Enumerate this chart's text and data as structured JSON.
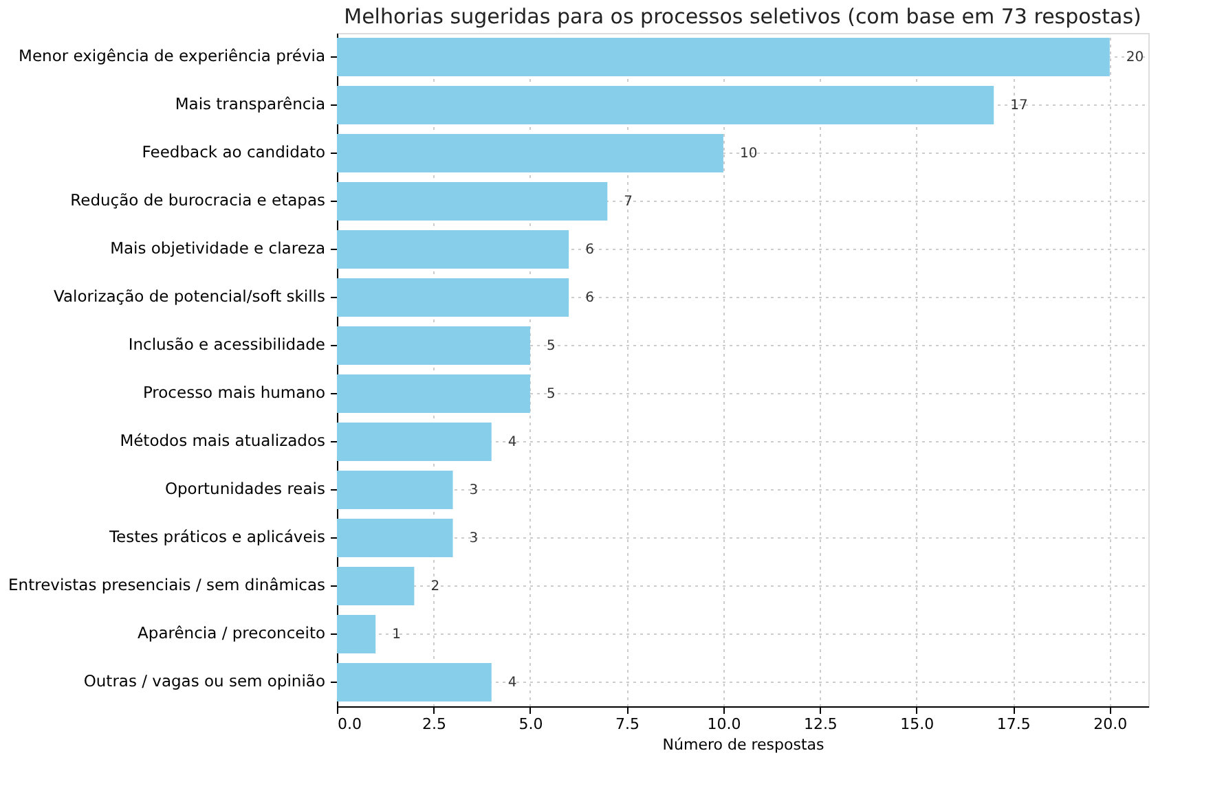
{
  "chart_data": {
    "type": "bar",
    "orientation": "horizontal",
    "title": "Melhorias sugeridas para os processos seletivos (com base em 73 respostas)",
    "xlabel": "Número de respostas",
    "categories": [
      "Menor exigência de experiência prévia",
      "Mais transparência",
      "Feedback ao candidato",
      "Redução de burocracia e etapas",
      "Mais objetividade e clareza",
      "Valorização de potencial/soft skills",
      "Inclusão e acessibilidade",
      "Processo mais humano",
      "Métodos mais atualizados",
      "Oportunidades reais",
      "Testes práticos e aplicáveis",
      "Entrevistas presenciais / sem dinâmicas",
      "Aparência / preconceito",
      "Outras / vagas ou sem opinião"
    ],
    "values": [
      20,
      17,
      10,
      7,
      6,
      6,
      5,
      5,
      4,
      3,
      3,
      2,
      1,
      4
    ],
    "color": "#87ceeb",
    "xlim": [
      0,
      21
    ],
    "xticks": [
      {
        "value": 0,
        "label": "0.0"
      },
      {
        "value": 2.5,
        "label": "2.5"
      },
      {
        "value": 5,
        "label": "5.0"
      },
      {
        "value": 7.5,
        "label": "7.5"
      },
      {
        "value": 10,
        "label": "10.0"
      },
      {
        "value": 12.5,
        "label": "12.5"
      },
      {
        "value": 15,
        "label": "15.0"
      },
      {
        "value": 17.5,
        "label": "17.5"
      },
      {
        "value": 20,
        "label": "20.0"
      }
    ],
    "grid": true,
    "data_labels": true
  }
}
